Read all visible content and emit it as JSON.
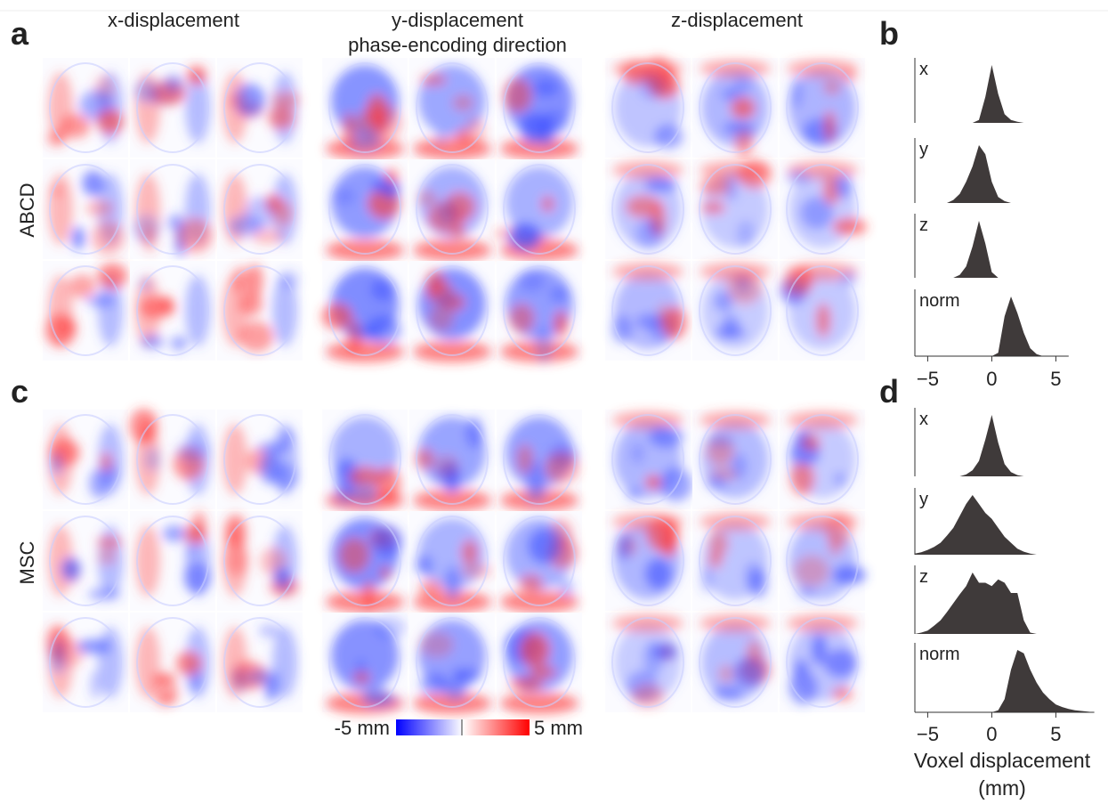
{
  "panels": {
    "a": "a",
    "b": "b",
    "c": "c",
    "d": "d"
  },
  "columns": {
    "x_title": "x-displacement",
    "y_title": "y-displacement",
    "y_subtitle": "phase-encoding direction",
    "z_title": "z-displacement"
  },
  "rows": {
    "top": "ABCD",
    "bottom": "MSC"
  },
  "colorbar": {
    "min_label": "-5 mm",
    "max_label": "5 mm"
  },
  "chart_data": [
    {
      "type": "area",
      "dataset": "ABCD",
      "x": [
        -6,
        -5.5,
        -5,
        -4.5,
        -4,
        -3.5,
        -3,
        -2.5,
        -2,
        -1.5,
        -1,
        -0.5,
        0,
        0.5,
        1,
        1.5,
        2,
        2.5,
        3,
        3.5,
        4,
        4.5,
        5,
        5.5,
        6
      ],
      "xlim": [
        -6,
        6
      ],
      "xticks": [
        {
          "value": -5,
          "label": "−5"
        },
        0,
        5
      ],
      "color": "#3f3a3a",
      "series": [
        {
          "name": "x",
          "values": [
            0,
            0,
            0,
            0,
            0,
            0,
            0,
            0,
            0,
            0,
            0.05,
            0.45,
            1,
            0.5,
            0.15,
            0.05,
            0.02,
            0,
            0,
            0,
            0,
            0,
            0,
            0,
            0
          ]
        },
        {
          "name": "y",
          "values": [
            0,
            0,
            0,
            0,
            0,
            0,
            0.05,
            0.15,
            0.35,
            0.6,
            0.95,
            0.8,
            0.35,
            0.1,
            0.03,
            0,
            0,
            0,
            0,
            0,
            0,
            0,
            0,
            0,
            0
          ]
        },
        {
          "name": "z",
          "values": [
            0,
            0,
            0,
            0,
            0,
            0,
            0,
            0.05,
            0.2,
            0.55,
            1,
            0.6,
            0.1,
            0,
            0,
            0,
            0,
            0,
            0,
            0,
            0,
            0,
            0,
            0,
            0
          ]
        },
        {
          "name": "norm",
          "values": [
            0,
            0,
            0,
            0,
            0,
            0,
            0,
            0,
            0,
            0,
            0,
            0,
            0,
            0.05,
            0.6,
            0.9,
            0.65,
            0.35,
            0.12,
            0.03,
            0,
            0,
            0,
            0,
            0
          ]
        }
      ]
    },
    {
      "type": "area",
      "dataset": "MSC",
      "x": [
        -6,
        -5.5,
        -5,
        -4.5,
        -4,
        -3.5,
        -3,
        -2.5,
        -2,
        -1.5,
        -1,
        -0.5,
        0,
        0.5,
        1,
        1.5,
        2,
        2.5,
        3,
        3.5,
        4,
        4.5,
        5,
        5.5,
        6,
        6.5,
        7,
        7.5,
        8
      ],
      "xlim": [
        -6,
        8
      ],
      "xticks": [
        {
          "value": -5,
          "label": "−5"
        },
        0,
        5
      ],
      "xlabel": "Voxel displacement",
      "xlabel_unit": "(mm)",
      "color": "#3f3a3a",
      "series": [
        {
          "name": "x",
          "values": [
            0,
            0,
            0,
            0,
            0,
            0,
            0,
            0,
            0.03,
            0.1,
            0.25,
            0.6,
            1,
            0.55,
            0.2,
            0.07,
            0.02,
            0,
            0,
            0,
            0,
            0,
            0,
            0,
            0,
            0,
            0,
            0,
            0
          ]
        },
        {
          "name": "y",
          "values": [
            0.02,
            0.04,
            0.08,
            0.13,
            0.2,
            0.32,
            0.45,
            0.65,
            0.85,
            1,
            0.85,
            0.7,
            0.6,
            0.45,
            0.3,
            0.2,
            0.1,
            0.05,
            0.02,
            0,
            0,
            0,
            0,
            0,
            0,
            0,
            0,
            0,
            0
          ]
        },
        {
          "name": "z",
          "values": [
            0,
            0.02,
            0.05,
            0.12,
            0.2,
            0.32,
            0.45,
            0.58,
            0.7,
            0.9,
            0.75,
            0.75,
            0.7,
            0.8,
            0.75,
            0.6,
            0.6,
            0.2,
            0.02,
            0,
            0,
            0,
            0,
            0,
            0,
            0,
            0,
            0,
            0
          ]
        },
        {
          "name": "norm",
          "values": [
            0,
            0,
            0,
            0,
            0,
            0,
            0,
            0,
            0,
            0,
            0,
            0,
            0,
            0.03,
            0.2,
            0.65,
            0.95,
            0.9,
            0.65,
            0.45,
            0.3,
            0.2,
            0.12,
            0.08,
            0.05,
            0.03,
            0.02,
            0.01,
            0
          ]
        }
      ]
    }
  ]
}
